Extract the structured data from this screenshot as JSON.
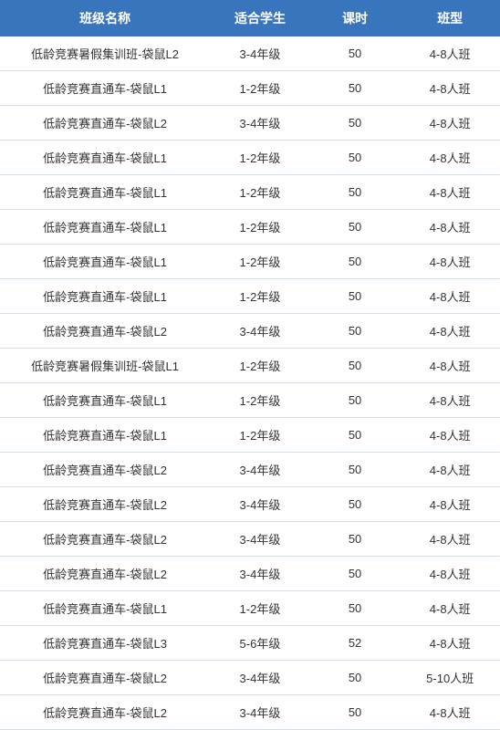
{
  "table": {
    "header_bg": "#3975bd",
    "header_color": "#ffffff",
    "row_border_color": "#d4e3f3",
    "text_color": "#333333",
    "header_fontsize": 14,
    "cell_fontsize": 13,
    "columns": [
      {
        "key": "name",
        "label": "班级名称",
        "width": "42%"
      },
      {
        "key": "students",
        "label": "适合学生",
        "width": "20%"
      },
      {
        "key": "hours",
        "label": "课时",
        "width": "18%"
      },
      {
        "key": "type",
        "label": "班型",
        "width": "20%"
      }
    ],
    "rows": [
      {
        "name": "低龄竞赛暑假集训班-袋鼠L2",
        "students": "3-4年级",
        "hours": "50",
        "type": "4-8人班"
      },
      {
        "name": "低龄竞赛直通车-袋鼠L1",
        "students": "1-2年级",
        "hours": "50",
        "type": "4-8人班"
      },
      {
        "name": "低龄竞赛直通车-袋鼠L2",
        "students": "3-4年级",
        "hours": "50",
        "type": "4-8人班"
      },
      {
        "name": "低龄竞赛直通车-袋鼠L1",
        "students": "1-2年级",
        "hours": "50",
        "type": "4-8人班"
      },
      {
        "name": "低龄竞赛直通车-袋鼠L1",
        "students": "1-2年级",
        "hours": "50",
        "type": "4-8人班"
      },
      {
        "name": "低龄竞赛直通车-袋鼠L1",
        "students": "1-2年级",
        "hours": "50",
        "type": "4-8人班"
      },
      {
        "name": "低龄竞赛直通车-袋鼠L1",
        "students": "1-2年级",
        "hours": "50",
        "type": "4-8人班"
      },
      {
        "name": "低龄竞赛直通车-袋鼠L1",
        "students": "1-2年级",
        "hours": "50",
        "type": "4-8人班"
      },
      {
        "name": "低龄竞赛直通车-袋鼠L2",
        "students": "3-4年级",
        "hours": "50",
        "type": "4-8人班"
      },
      {
        "name": "低龄竞赛暑假集训班-袋鼠L1",
        "students": "1-2年级",
        "hours": "50",
        "type": "4-8人班"
      },
      {
        "name": "低龄竞赛直通车-袋鼠L1",
        "students": "1-2年级",
        "hours": "50",
        "type": "4-8人班"
      },
      {
        "name": "低龄竞赛直通车-袋鼠L1",
        "students": "1-2年级",
        "hours": "50",
        "type": "4-8人班"
      },
      {
        "name": "低龄竞赛直通车-袋鼠L2",
        "students": "3-4年级",
        "hours": "50",
        "type": "4-8人班"
      },
      {
        "name": "低龄竞赛直通车-袋鼠L2",
        "students": "3-4年级",
        "hours": "50",
        "type": "4-8人班"
      },
      {
        "name": "低龄竞赛直通车-袋鼠L2",
        "students": "3-4年级",
        "hours": "50",
        "type": "4-8人班"
      },
      {
        "name": "低龄竞赛直通车-袋鼠L2",
        "students": "3-4年级",
        "hours": "50",
        "type": "4-8人班"
      },
      {
        "name": "低龄竞赛直通车-袋鼠L1",
        "students": "1-2年级",
        "hours": "50",
        "type": "4-8人班"
      },
      {
        "name": "低龄竞赛直通车-袋鼠L3",
        "students": "5-6年级",
        "hours": "52",
        "type": "4-8人班"
      },
      {
        "name": "低龄竞赛直通车-袋鼠L2",
        "students": "3-4年级",
        "hours": "50",
        "type": "5-10人班"
      },
      {
        "name": "低龄竞赛直通车-袋鼠L2",
        "students": "3-4年级",
        "hours": "50",
        "type": "4-8人班"
      }
    ]
  }
}
